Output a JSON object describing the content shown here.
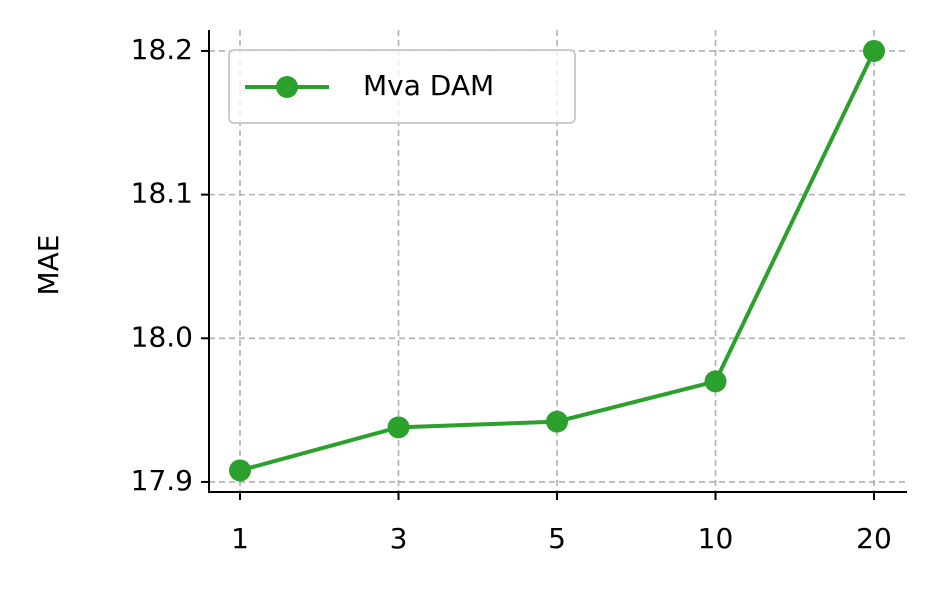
{
  "chart_data": {
    "type": "line",
    "y_label": "MAE",
    "categories": [
      "1",
      "3",
      "5",
      "10",
      "20"
    ],
    "series": [
      {
        "name": "Mva DAM",
        "color": "#2ca02c",
        "values": [
          17.908,
          17.938,
          17.942,
          17.97,
          18.2
        ]
      }
    ],
    "ylim": [
      17.893,
      18.2146
    ],
    "yticks": [
      17.9,
      {
        "value": 18,
        "label": "18.0"
      },
      18.1,
      18.2
    ],
    "grid": true,
    "legend": "upper left"
  }
}
